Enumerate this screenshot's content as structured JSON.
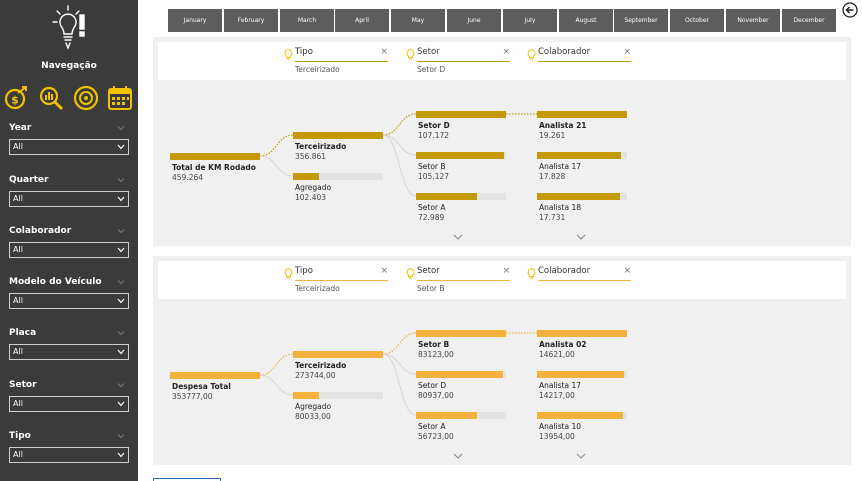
{
  "sidebar": {
    "title": "Navegação",
    "nav_icons": [
      "money-growth-icon",
      "analytics-icon",
      "target-icon",
      "calendar-icon"
    ],
    "filters": [
      {
        "label": "Year",
        "value": "All"
      },
      {
        "label": "Quarter",
        "value": "All"
      },
      {
        "label": "Colaborador",
        "value": "All"
      },
      {
        "label": "Modelo do Veículo",
        "value": "All"
      },
      {
        "label": "Placa",
        "value": "All"
      },
      {
        "label": "Setor",
        "value": "All"
      },
      {
        "label": "Tipo",
        "value": "All"
      }
    ]
  },
  "months": [
    "January",
    "February",
    "March",
    "April",
    "May",
    "June",
    "July",
    "August",
    "September",
    "October",
    "November",
    "December"
  ],
  "colors": {
    "sidebar_bg": "#3b3b3b",
    "accent": "#f2c200",
    "month_bg": "#5d5d5d",
    "tree1_bar": "#c49a0a",
    "tree2_bar": "#f4b23c",
    "bar_track": "#e3e3e3"
  },
  "tree1": {
    "pills": [
      {
        "label": "Tipo",
        "value": "Terceirizado"
      },
      {
        "label": "Setor",
        "value": "Setor D"
      },
      {
        "label": "Colaborador",
        "value": ""
      }
    ],
    "root": {
      "label": "Total de KM Rodado",
      "value": "459.264",
      "fill": 1.0
    },
    "level1": [
      {
        "label": "Terceirizado",
        "value": "356.861",
        "fill": 1.0,
        "selected": true
      },
      {
        "label": "Agregado",
        "value": "102.403",
        "fill": 0.29,
        "selected": false
      }
    ],
    "level2": [
      {
        "label": "Setor D",
        "value": "107.172",
        "fill": 1.0,
        "selected": true
      },
      {
        "label": "Setor B",
        "value": "105.127",
        "fill": 0.98,
        "selected": false
      },
      {
        "label": "Setor A",
        "value": "72.989",
        "fill": 0.68,
        "selected": false
      }
    ],
    "level3": [
      {
        "label": "Analista 21",
        "value": "19.261",
        "fill": 1.0,
        "selected": true
      },
      {
        "label": "Analista 17",
        "value": "17.828",
        "fill": 0.93,
        "selected": false
      },
      {
        "label": "Analista 18",
        "value": "17.731",
        "fill": 0.92,
        "selected": false
      }
    ]
  },
  "tree2": {
    "pills": [
      {
        "label": "Tipo",
        "value": "Terceirizado"
      },
      {
        "label": "Setor",
        "value": "Setor B"
      },
      {
        "label": "Colaborador",
        "value": ""
      }
    ],
    "root": {
      "label": "Despesa Total",
      "value": "353777,00",
      "fill": 1.0
    },
    "level1": [
      {
        "label": "Terceirizado",
        "value": "273744,00",
        "fill": 1.0,
        "selected": true
      },
      {
        "label": "Agregado",
        "value": "80033,00",
        "fill": 0.29,
        "selected": false
      }
    ],
    "level2": [
      {
        "label": "Setor B",
        "value": "83123,00",
        "fill": 1.0,
        "selected": true
      },
      {
        "label": "Setor D",
        "value": "80937,00",
        "fill": 0.97,
        "selected": false
      },
      {
        "label": "Setor A",
        "value": "56723,00",
        "fill": 0.68,
        "selected": false
      }
    ],
    "level3": [
      {
        "label": "Analista 02",
        "value": "14621,00",
        "fill": 1.0,
        "selected": true
      },
      {
        "label": "Analista 17",
        "value": "14217,00",
        "fill": 0.97,
        "selected": false
      },
      {
        "label": "Analista 10",
        "value": "13954,00",
        "fill": 0.95,
        "selected": false
      }
    ]
  }
}
